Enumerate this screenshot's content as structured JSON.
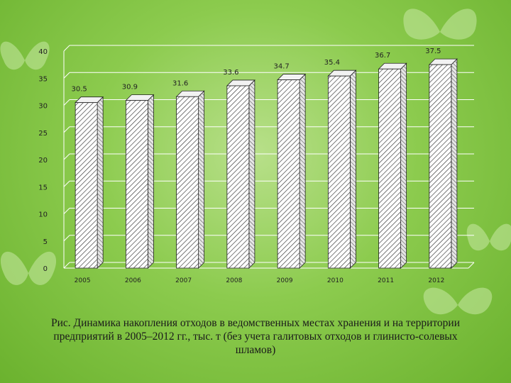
{
  "chart_data": {
    "type": "bar",
    "title": "",
    "xlabel": "",
    "ylabel": "",
    "categories": [
      "2005",
      "2006",
      "2007",
      "2008",
      "2009",
      "2010",
      "2011",
      "2012"
    ],
    "values": [
      30.5,
      30.9,
      31.6,
      33.6,
      34.7,
      35.4,
      36.7,
      37.5
    ],
    "value_labels": [
      "30.5",
      "30.9",
      "31.6",
      "33.6",
      "34.7",
      "35.4",
      "36.7",
      "37.5"
    ],
    "ylim": [
      0,
      40
    ],
    "yticks": [
      "0",
      "5",
      "10",
      "15",
      "20",
      "25",
      "30",
      "35",
      "40"
    ],
    "grid": true,
    "bar_style": "3d-hatched"
  },
  "caption": {
    "line1": "Рис. Динамика накопления отходов в ведомственных местах хранения и на территории",
    "line2": "предприятий в 2005–2012 гг., тыс. т (без учета галитовых отходов и глинисто-солевых",
    "line3": "шламов)"
  },
  "colors": {
    "background": "#8ccb4e",
    "bar_fill": "#ffffff",
    "bar_hatch": "#333333",
    "grid": "#ffffff",
    "text": "#1a1a1a"
  }
}
